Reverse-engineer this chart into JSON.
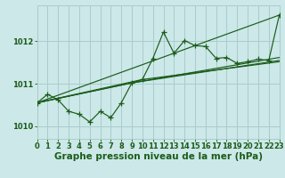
{
  "bg_color": "#cce8e8",
  "grid_color": "#aacccc",
  "line_color": "#1a5c1a",
  "xlabel": "Graphe pression niveau de la mer (hPa)",
  "xlabel_fontsize": 7.5,
  "tick_fontsize": 6,
  "xlim": [
    0,
    23
  ],
  "ylim": [
    1009.7,
    1012.85
  ],
  "yticks": [
    1010,
    1011,
    1012
  ],
  "xticks": [
    0,
    1,
    2,
    3,
    4,
    5,
    6,
    7,
    8,
    9,
    10,
    11,
    12,
    13,
    14,
    15,
    16,
    17,
    18,
    19,
    20,
    21,
    22,
    23
  ],
  "main_x": [
    0,
    1,
    2,
    3,
    4,
    5,
    6,
    7,
    8,
    9,
    10,
    11,
    12,
    13,
    14,
    15,
    16,
    17,
    18,
    19,
    20,
    21,
    22,
    23
  ],
  "main_y": [
    1010.55,
    1010.75,
    1010.62,
    1010.35,
    1010.28,
    1010.1,
    1010.35,
    1010.2,
    1010.55,
    1011.02,
    1011.1,
    1011.6,
    1012.22,
    1011.72,
    1012.02,
    1011.9,
    1011.88,
    1011.6,
    1011.62,
    1011.48,
    1011.52,
    1011.58,
    1011.55,
    1012.62
  ],
  "trend_lines": [
    {
      "x": [
        0,
        23
      ],
      "y": [
        1010.55,
        1012.62
      ]
    },
    {
      "x": [
        0,
        9,
        23
      ],
      "y": [
        1010.55,
        1011.02,
        1011.62
      ]
    },
    {
      "x": [
        0,
        9,
        23
      ],
      "y": [
        1010.55,
        1011.02,
        1011.55
      ]
    },
    {
      "x": [
        0,
        10,
        23
      ],
      "y": [
        1010.55,
        1011.1,
        1011.52
      ]
    }
  ]
}
